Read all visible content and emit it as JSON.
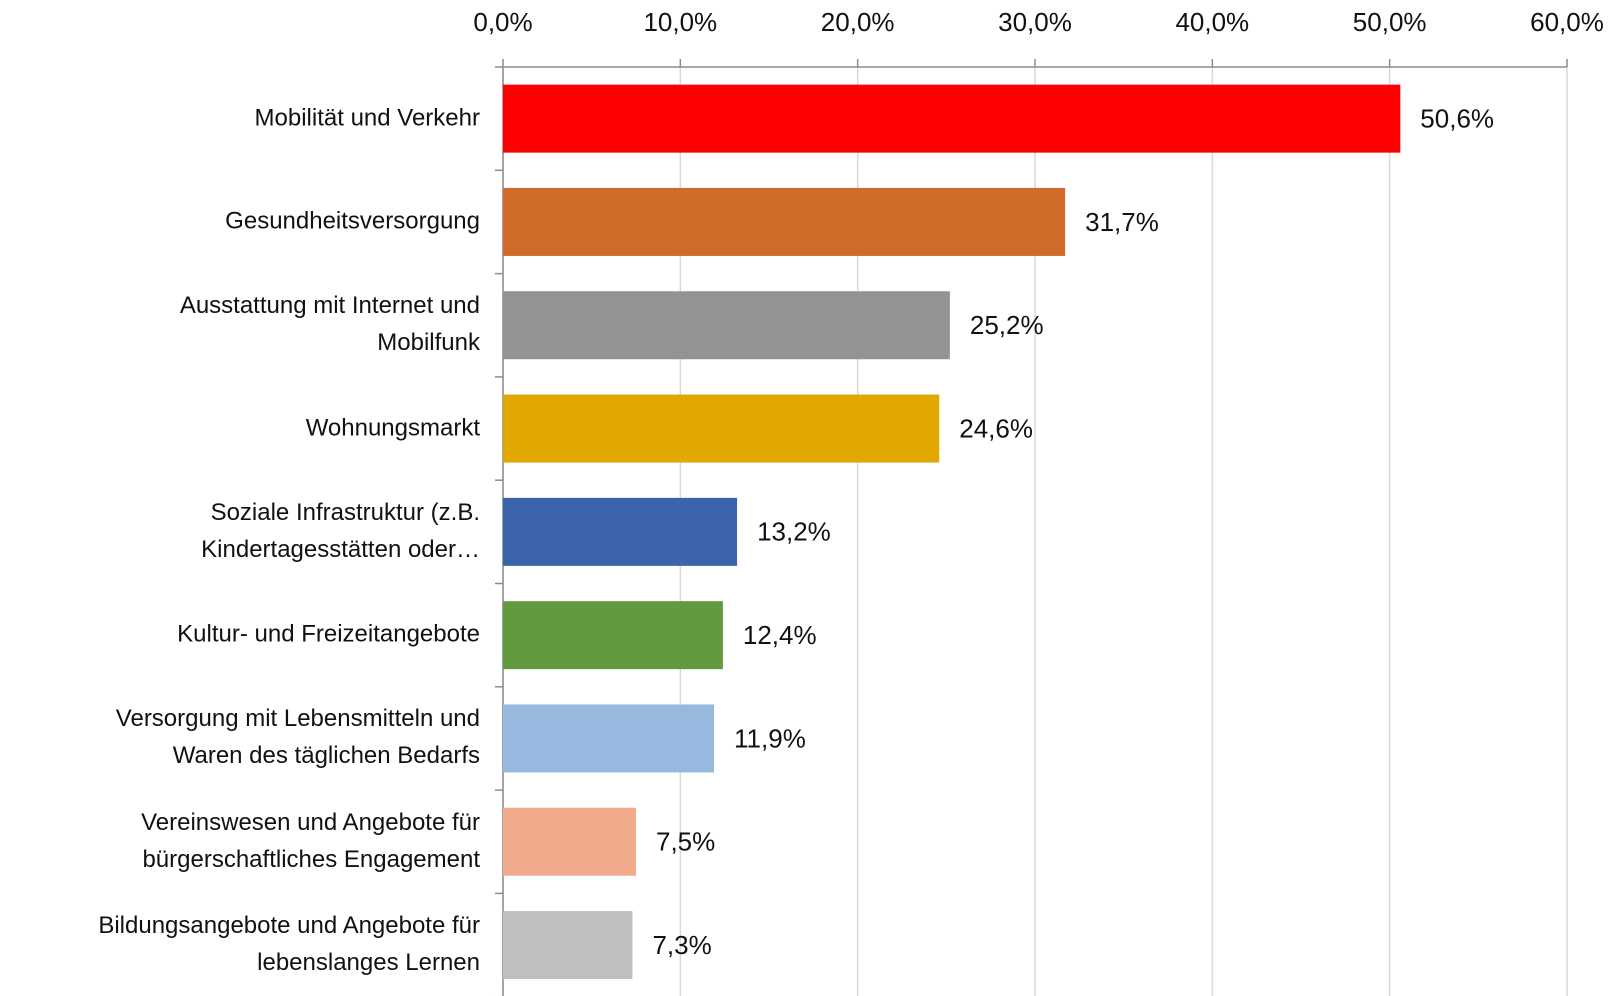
{
  "chart_data": {
    "type": "bar",
    "orientation": "horizontal",
    "categories": [
      "Mobilität und Verkehr",
      "Gesundheitsversorgung",
      "Ausstattung mit Internet und\nMobilfunk",
      "Wohnungsmarkt",
      "Soziale Infrastruktur (z.B.\nKindertagesstätten oder…",
      "Kultur- und Freizeitangebote",
      "Versorgung mit Lebensmitteln und\nWaren des täglichen Bedarfs",
      "Vereinswesen und Angebote für\nbürgerschaftliches Engagement",
      "Bildungsangebote und Angebote für\nlebenslanges Lernen"
    ],
    "values": [
      50.6,
      31.7,
      25.2,
      24.6,
      13.2,
      12.4,
      11.9,
      7.5,
      7.3
    ],
    "value_labels": [
      "50,6%",
      "31,7%",
      "25,2%",
      "24,6%",
      "13,2%",
      "12,4%",
      "11,9%",
      "7,5%",
      "7,3%"
    ],
    "colors": [
      "#ff0000",
      "#d06b2a",
      "#939393",
      "#e2a800",
      "#3b64ad",
      "#629a40",
      "#97b9e0",
      "#f0a98b",
      "#bfbfbf"
    ],
    "xlim": [
      0,
      60
    ],
    "xticks": [
      {
        "value": 0,
        "label": "0,0%"
      },
      {
        "value": 10,
        "label": "10,0%"
      },
      {
        "value": 20,
        "label": "20,0%"
      },
      {
        "value": 30,
        "label": "30,0%"
      },
      {
        "value": 40,
        "label": "40,0%"
      },
      {
        "value": 50,
        "label": "50,0%"
      },
      {
        "value": 60,
        "label": "60,0%"
      }
    ],
    "grid": true,
    "axis_position": "top"
  }
}
